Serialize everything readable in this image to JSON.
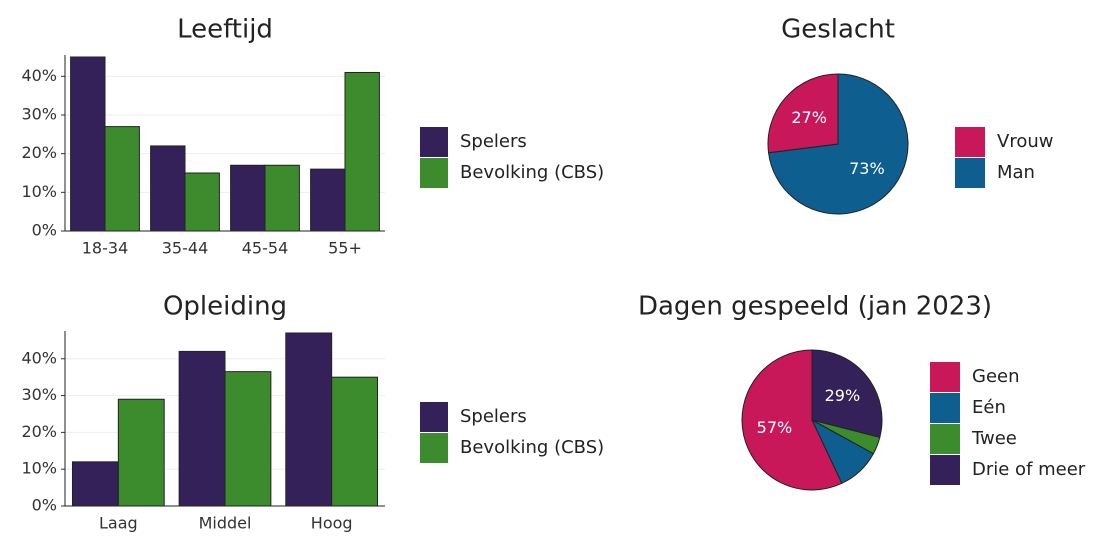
{
  "chart_data": [
    {
      "type": "bar",
      "title": "Leeftijd",
      "categories": [
        "18-34",
        "35-44",
        "45-54",
        "55+"
      ],
      "series": [
        {
          "name": "Spelers",
          "color": "#35215a",
          "values": [
            45,
            22,
            17,
            16
          ]
        },
        {
          "name": "Bevolking (CBS)",
          "color": "#3c8c2e",
          "values": [
            27,
            15,
            17,
            41
          ]
        }
      ],
      "ylim": [
        0,
        45
      ],
      "yticks": [
        {
          "value": 0,
          "label": "0%"
        },
        {
          "value": 10,
          "label": "10%"
        },
        {
          "value": 20,
          "label": "20%"
        },
        {
          "value": 30,
          "label": "30%"
        },
        {
          "value": 40,
          "label": "40%"
        }
      ],
      "grid": true
    },
    {
      "type": "pie",
      "title": "Geslacht",
      "categories": [
        "Vrouw",
        "Man"
      ],
      "values": [
        27,
        73
      ],
      "value_labels": [
        "27%",
        "73%"
      ],
      "colors": [
        "#c8185a",
        "#0e5e8f"
      ]
    },
    {
      "type": "bar",
      "title": "Opleiding",
      "categories": [
        "Laag",
        "Middel",
        "Hoog"
      ],
      "series": [
        {
          "name": "Spelers",
          "color": "#35215a",
          "values": [
            12,
            42,
            47
          ]
        },
        {
          "name": "Bevolking (CBS)",
          "color": "#3c8c2e",
          "values": [
            29,
            36.5,
            35
          ]
        }
      ],
      "ylim": [
        0,
        47
      ],
      "yticks": [
        {
          "value": 0,
          "label": "0%"
        },
        {
          "value": 10,
          "label": "10%"
        },
        {
          "value": 20,
          "label": "20%"
        },
        {
          "value": 30,
          "label": "30%"
        },
        {
          "value": 40,
          "label": "40%"
        }
      ],
      "grid": true
    },
    {
      "type": "pie",
      "title": "Dagen gespeeld (jan 2023)",
      "categories": [
        "Geen",
        "Eén",
        "Twee",
        "Drie of meer"
      ],
      "values": [
        57,
        10,
        4,
        29
      ],
      "value_labels": [
        "57%",
        null,
        null,
        "29%"
      ],
      "colors": [
        "#c8185a",
        "#0e5e8f",
        "#3c8c2e",
        "#35215a"
      ]
    }
  ]
}
